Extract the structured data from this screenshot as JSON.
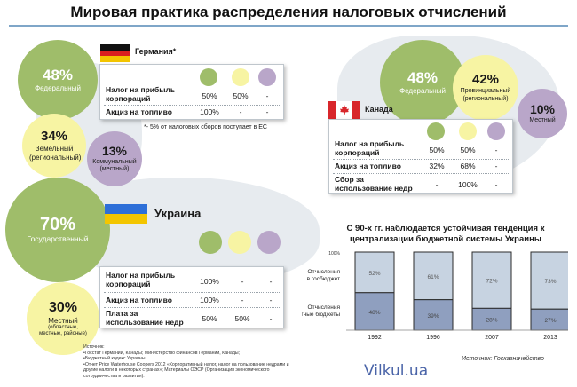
{
  "title": "Мировая практика распределения налоговых отчислений",
  "germany": {
    "name": "Германия*",
    "footnote": "*- 5% от налоговых сборов поступает в ЕС",
    "circles": [
      {
        "pct": "48%",
        "label": "Федеральный"
      },
      {
        "pct": "34%",
        "label": "Земельный (региональный)"
      },
      {
        "pct": "13%",
        "label": "Коммунальный (местный)"
      }
    ],
    "rows": [
      {
        "name": "Налог на прибыль корпораций",
        "v": [
          "50%",
          "50%",
          "-"
        ]
      },
      {
        "name": "Акциз на топливо",
        "v": [
          "100%",
          "-",
          "-"
        ]
      }
    ]
  },
  "canada": {
    "name": "Канада",
    "circles": [
      {
        "pct": "48%",
        "label": "Федеральный"
      },
      {
        "pct": "42%",
        "label": "Провинциальный (региональный)"
      },
      {
        "pct": "10%",
        "label": "Местный"
      }
    ],
    "rows": [
      {
        "name": "Налог на прибыль корпораций",
        "v": [
          "50%",
          "50%",
          "-"
        ]
      },
      {
        "name": "Акциз на топливо",
        "v": [
          "32%",
          "68%",
          "-"
        ]
      },
      {
        "name": "Сбор за использование недр",
        "v": [
          "-",
          "100%",
          "-"
        ]
      }
    ]
  },
  "ukraine": {
    "name": "Украина",
    "circles": [
      {
        "pct": "70%",
        "label": "Государственный"
      },
      {
        "pct": "30%",
        "label": "Местный",
        "sub": "(областные, местные, районые)"
      }
    ],
    "rows": [
      {
        "name": "Налог на прибыль корпораций",
        "v": [
          "100%",
          "-",
          "-"
        ]
      },
      {
        "name": "Акциз на топливо",
        "v": [
          "100%",
          "-",
          "-"
        ]
      },
      {
        "name": "Плата за использование недр",
        "v": [
          "50%",
          "50%",
          "-"
        ]
      }
    ]
  },
  "chart_data": {
    "type": "bar",
    "stacked": true,
    "title": "С 90-х гг. наблюдается устойчивая тенденция к централизации бюджетной системы Украины",
    "categories": [
      "1992",
      "1996",
      "2007",
      "2013"
    ],
    "series": [
      {
        "name": "Отчисления в госбюджет",
        "values": [
          52,
          61,
          72,
          73
        ],
        "labels": [
          "52%",
          "61%",
          "72%",
          "73%"
        ]
      },
      {
        "name": "Отчисления в местные бюджеты",
        "values": [
          48,
          39,
          28,
          27
        ],
        "labels": [
          "48%",
          "39%",
          "28%",
          "27%"
        ]
      }
    ],
    "ylim": [
      0,
      100
    ],
    "top_label": "100%",
    "source": "Источник: Госказначейство"
  },
  "sources": {
    "heading": "Источник:",
    "lines": [
      "•Госстат Германии, Канады; Министерство финансов Германии, Канады;",
      "•Бюджетный кодекс Украины;",
      "•Отчет Price Waterhouse Coopers 2012 «Корпоративный налог, налог на пользование недрами и другие налоги в некоторых странах»; Материалы ОЭСР (Организация экономического сотрудничества и развития)."
    ]
  },
  "watermark": "Vilkul.ua",
  "colors": {
    "green": "#9fbd6a",
    "yellow": "#f7f4a3",
    "purple": "#b9a6c9",
    "bar_top": "#c7d3e1",
    "bar_bottom": "#8f9fbf"
  }
}
